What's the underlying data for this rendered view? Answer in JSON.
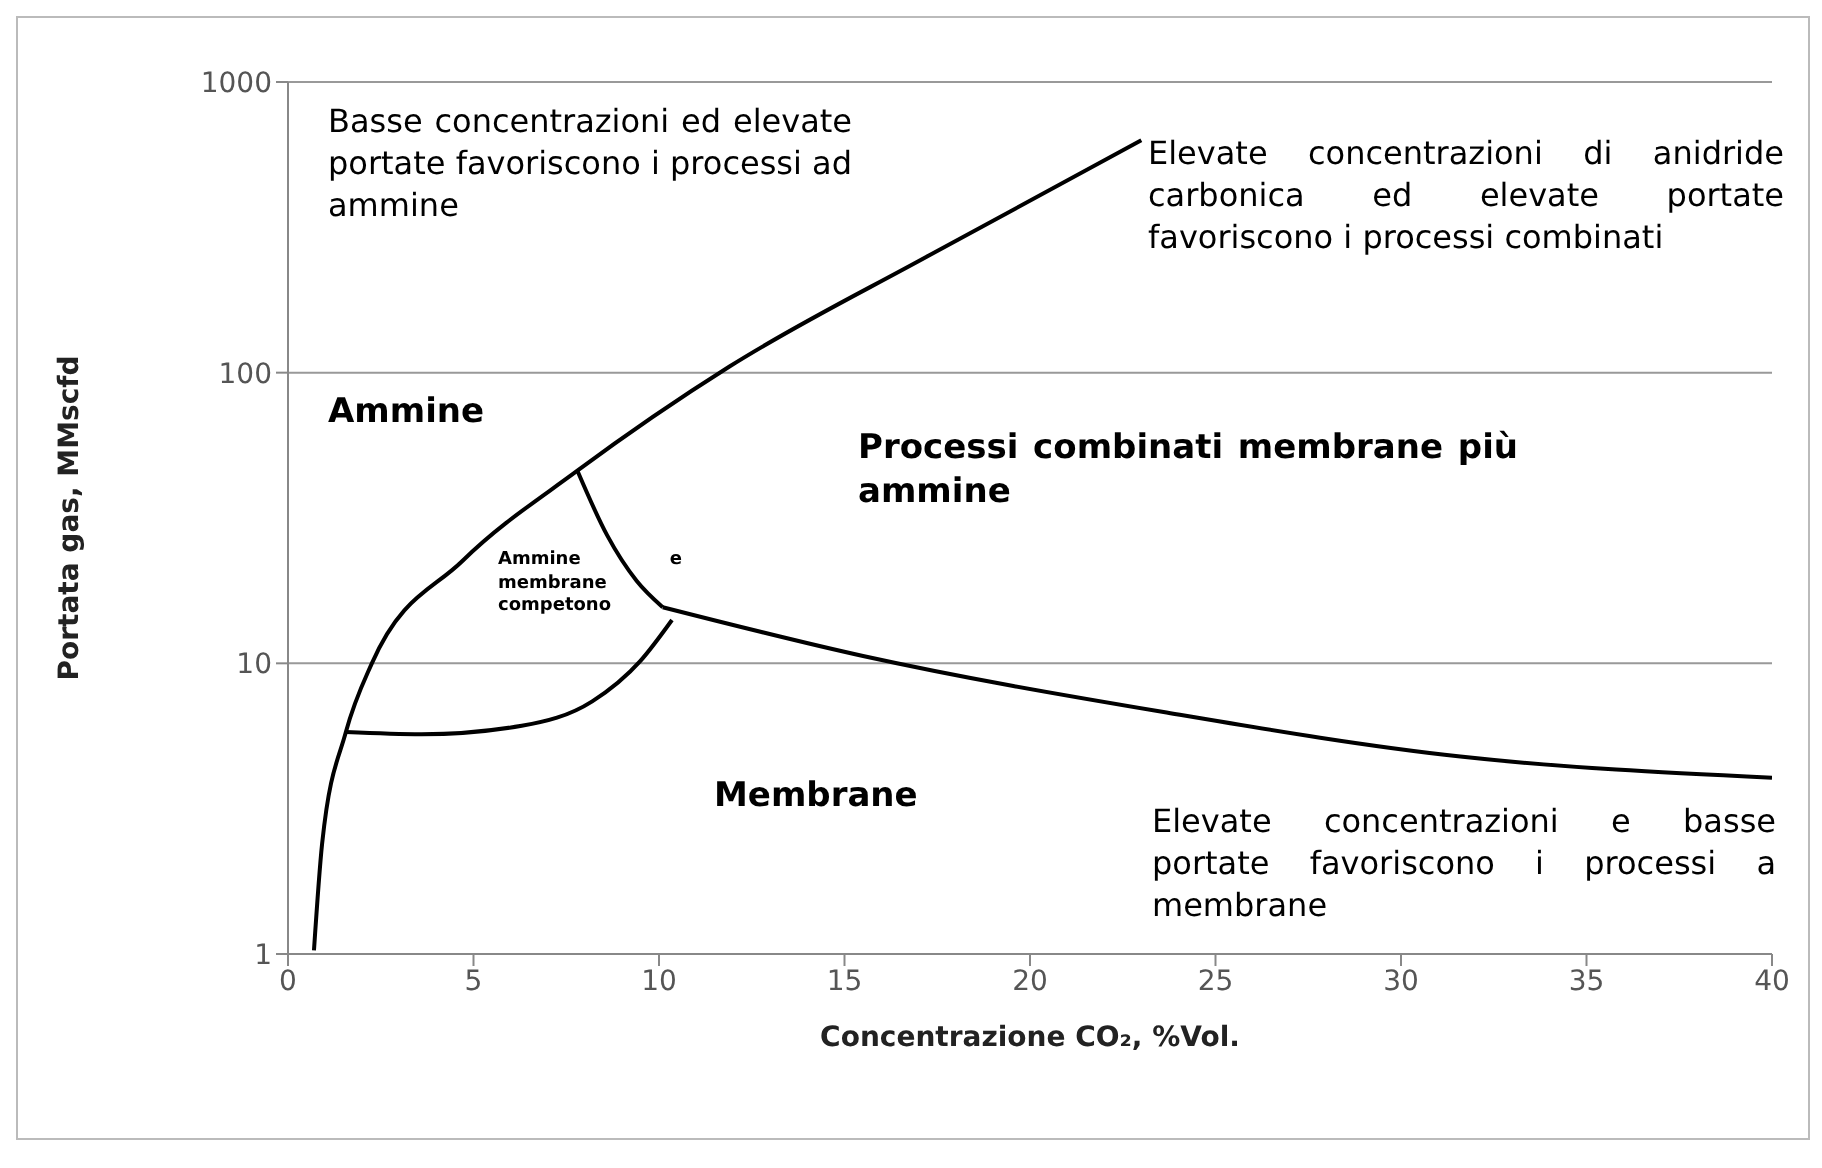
{
  "chart_data": {
    "type": "line",
    "xlabel": "Concentrazione CO₂, %Vol.",
    "ylabel": "Portata gas, MMscfd",
    "xlim": [
      0,
      40
    ],
    "xticks": [
      0,
      5,
      10,
      15,
      20,
      25,
      30,
      35,
      40
    ],
    "ylim": [
      1,
      1000
    ],
    "yticks": [
      1,
      10,
      100,
      1000
    ],
    "log": true,
    "grid": "y",
    "series": [
      {
        "color": "#000000",
        "x": [
          0.7,
          0.92,
          1.56,
          2.26,
          4.7,
          7.8,
          11.9,
          17.3,
          23.0
        ],
        "values": [
          1.03,
          2.4,
          5.8,
          10,
          22.5,
          46,
          105,
          254,
          630
        ]
      },
      {
        "color": "#000000",
        "x": [
          7.8,
          8.6,
          9.4,
          10.1
        ],
        "values": [
          46,
          27.6,
          19.2,
          15.6
        ]
      },
      {
        "color": "#000000",
        "x": [
          10.1,
          15.5,
          23.6,
          31.6,
          40
        ],
        "values": [
          15.6,
          10.6,
          6.8,
          4.78,
          4.04
        ]
      },
      {
        "color": "#000000",
        "x": [
          1.56,
          3.6,
          6.3,
          8.2,
          9.5,
          10.35
        ],
        "values": [
          5.8,
          5.7,
          6.1,
          7.4,
          10.2,
          14.1
        ]
      }
    ],
    "annotations": [
      "Basse concentrazioni ed elevate portate favoriscono i processi ad ammine",
      "Elevate concentrazioni di anidride carbonica ed elevate portate favoriscono i processi combinati",
      "Ammine",
      "Processi combinati membrane più ammine",
      "Ammine e membrane competono",
      "Membrane",
      "Elevate concentrazioni e basse portate favoriscono i processi a membrane"
    ]
  }
}
